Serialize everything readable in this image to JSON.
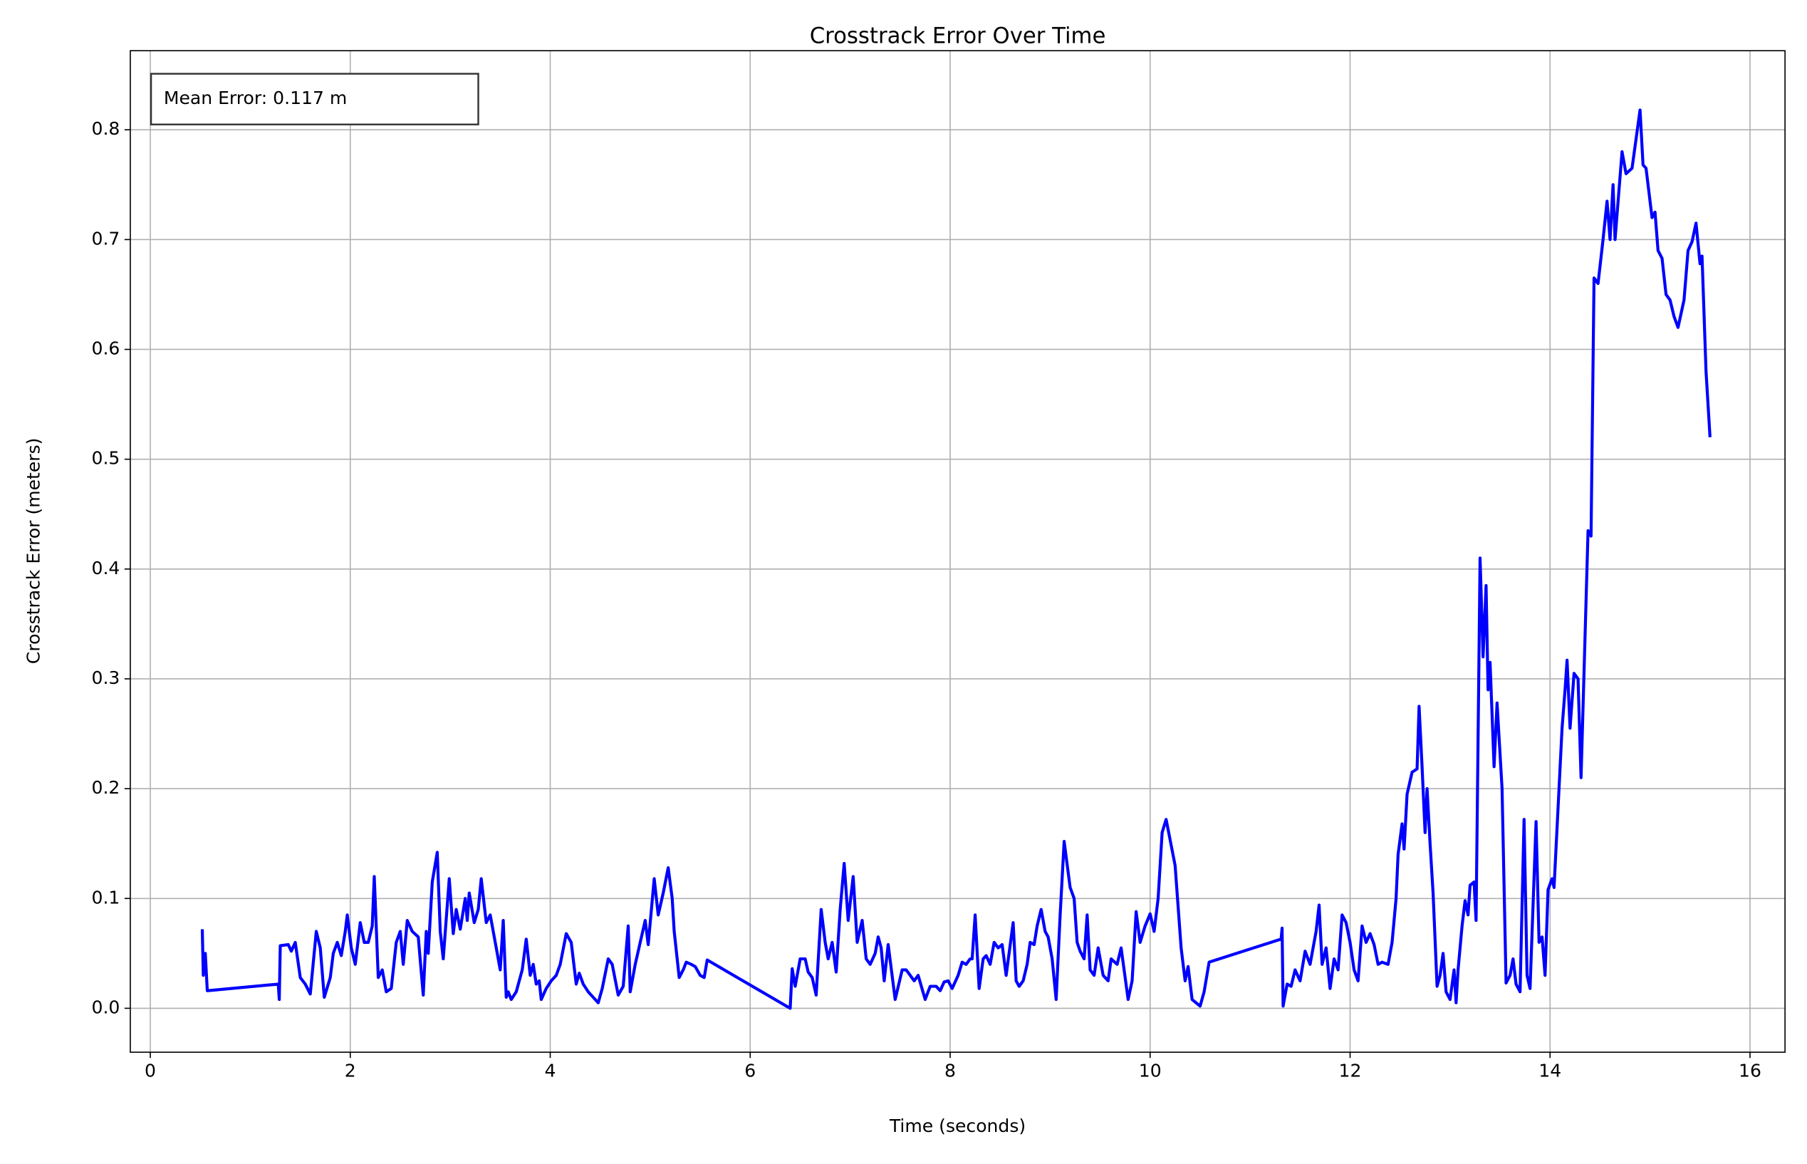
{
  "chart_data": {
    "type": "line",
    "title": "Crosstrack Error Over Time",
    "xlabel": "Time (seconds)",
    "ylabel": "Crosstrack Error (meters)",
    "annotation": "Mean Error: 0.117 m",
    "grid": true,
    "xlim": [
      -0.2,
      16.35
    ],
    "ylim": [
      -0.04,
      0.872
    ],
    "xticks": [
      0,
      2,
      4,
      6,
      8,
      10,
      12,
      14,
      16
    ],
    "yticks": [
      {
        "value": 0,
        "label": "0.0"
      },
      0.1,
      0.2,
      0.3,
      0.4,
      0.5,
      0.6,
      0.7,
      0.8
    ],
    "x": [
      0.52,
      0.53,
      0.55,
      0.57,
      1.28,
      1.29,
      1.3,
      1.38,
      1.41,
      1.45,
      1.5,
      1.55,
      1.6,
      1.66,
      1.7,
      1.74,
      1.8,
      1.83,
      1.87,
      1.91,
      1.95,
      1.97,
      2.01,
      2.05,
      2.1,
      2.14,
      2.18,
      2.22,
      2.24,
      2.28,
      2.32,
      2.36,
      2.41,
      2.46,
      2.5,
      2.53,
      2.57,
      2.62,
      2.68,
      2.73,
      2.76,
      2.78,
      2.82,
      2.87,
      2.9,
      2.93,
      2.99,
      3.03,
      3.06,
      3.1,
      3.15,
      3.17,
      3.19,
      3.24,
      3.28,
      3.31,
      3.36,
      3.4,
      3.45,
      3.5,
      3.53,
      3.56,
      3.58,
      3.61,
      3.66,
      3.72,
      3.76,
      3.8,
      3.83,
      3.86,
      3.89,
      3.91,
      3.96,
      4.01,
      4.06,
      4.1,
      4.16,
      4.21,
      4.26,
      4.29,
      4.33,
      4.38,
      4.43,
      4.48,
      4.52,
      4.58,
      4.62,
      4.68,
      4.73,
      4.78,
      4.8,
      4.85,
      4.9,
      4.95,
      4.98,
      5.04,
      5.08,
      5.13,
      5.18,
      5.22,
      5.24,
      5.29,
      5.33,
      5.36,
      5.41,
      5.45,
      5.5,
      5.54,
      5.57,
      6.4,
      6.42,
      6.45,
      6.5,
      6.55,
      6.58,
      6.62,
      6.66,
      6.71,
      6.75,
      6.78,
      6.82,
      6.86,
      6.9,
      6.94,
      6.98,
      7.03,
      7.07,
      7.12,
      7.16,
      7.2,
      7.25,
      7.28,
      7.31,
      7.34,
      7.38,
      7.45,
      7.52,
      7.56,
      7.6,
      7.64,
      7.68,
      7.75,
      7.8,
      7.86,
      7.9,
      7.94,
      7.98,
      8.02,
      8.08,
      8.12,
      8.16,
      8.2,
      8.22,
      8.25,
      8.29,
      8.33,
      8.36,
      8.4,
      8.44,
      8.48,
      8.52,
      8.56,
      8.63,
      8.66,
      8.69,
      8.73,
      8.77,
      8.8,
      8.84,
      8.87,
      8.91,
      8.95,
      8.98,
      9.02,
      9.06,
      9.1,
      9.14,
      9.2,
      9.24,
      9.27,
      9.3,
      9.34,
      9.37,
      9.4,
      9.44,
      9.48,
      9.53,
      9.58,
      9.61,
      9.67,
      9.71,
      9.78,
      9.82,
      9.86,
      9.9,
      9.95,
      10.0,
      10.04,
      10.08,
      10.12,
      10.16,
      10.25,
      10.31,
      10.35,
      10.38,
      10.42,
      10.5,
      10.54,
      10.59,
      11.31,
      11.32,
      11.33,
      11.37,
      11.41,
      11.45,
      11.5,
      11.55,
      11.6,
      11.66,
      11.69,
      11.72,
      11.76,
      11.8,
      11.84,
      11.88,
      11.92,
      11.96,
      12.0,
      12.04,
      12.08,
      12.12,
      12.16,
      12.2,
      12.24,
      12.28,
      12.32,
      12.38,
      12.42,
      12.46,
      12.48,
      12.52,
      12.54,
      12.57,
      12.62,
      12.67,
      12.69,
      12.72,
      12.75,
      12.77,
      12.8,
      12.83,
      12.87,
      12.9,
      12.93,
      12.96,
      13.0,
      13.04,
      13.06,
      13.08,
      13.12,
      13.15,
      13.18,
      13.2,
      13.24,
      13.26,
      13.3,
      13.33,
      13.36,
      13.38,
      13.4,
      13.44,
      13.47,
      13.52,
      13.56,
      13.6,
      13.63,
      13.66,
      13.7,
      13.74,
      13.77,
      13.8,
      13.86,
      13.89,
      13.92,
      13.95,
      13.98,
      14.02,
      14.04,
      14.12,
      14.15,
      14.17,
      14.2,
      14.24,
      14.28,
      14.31,
      14.38,
      14.41,
      14.44,
      14.48,
      14.53,
      14.57,
      14.6,
      14.63,
      14.65,
      14.72,
      14.76,
      14.82,
      14.9,
      14.93,
      14.96,
      15.02,
      15.05,
      15.08,
      15.12,
      15.16,
      15.2,
      15.24,
      15.28,
      15.34,
      15.38,
      15.42,
      15.46,
      15.5,
      15.52,
      15.56,
      15.6
    ],
    "series": [
      {
        "color": "#0000ff",
        "values": [
          0.072,
          0.03,
          0.05,
          0.016,
          0.022,
          0.008,
          0.057,
          0.058,
          0.052,
          0.06,
          0.028,
          0.022,
          0.013,
          0.07,
          0.055,
          0.01,
          0.028,
          0.05,
          0.06,
          0.048,
          0.07,
          0.085,
          0.055,
          0.04,
          0.078,
          0.06,
          0.06,
          0.075,
          0.12,
          0.028,
          0.035,
          0.015,
          0.018,
          0.06,
          0.07,
          0.04,
          0.08,
          0.07,
          0.065,
          0.012,
          0.07,
          0.05,
          0.115,
          0.142,
          0.07,
          0.045,
          0.118,
          0.068,
          0.09,
          0.072,
          0.1,
          0.08,
          0.105,
          0.078,
          0.09,
          0.118,
          0.078,
          0.085,
          0.06,
          0.035,
          0.08,
          0.01,
          0.015,
          0.008,
          0.015,
          0.035,
          0.063,
          0.03,
          0.04,
          0.022,
          0.025,
          0.008,
          0.018,
          0.025,
          0.03,
          0.04,
          0.068,
          0.06,
          0.022,
          0.032,
          0.022,
          0.015,
          0.01,
          0.005,
          0.018,
          0.045,
          0.04,
          0.012,
          0.02,
          0.075,
          0.015,
          0.04,
          0.06,
          0.08,
          0.058,
          0.118,
          0.085,
          0.105,
          0.128,
          0.1,
          0.07,
          0.028,
          0.035,
          0.042,
          0.04,
          0.038,
          0.03,
          0.028,
          0.044,
          0,
          0.036,
          0.02,
          0.045,
          0.045,
          0.033,
          0.028,
          0.012,
          0.09,
          0.06,
          0.045,
          0.06,
          0.033,
          0.09,
          0.132,
          0.08,
          0.12,
          0.06,
          0.08,
          0.045,
          0.04,
          0.05,
          0.065,
          0.055,
          0.025,
          0.058,
          0.008,
          0.035,
          0.035,
          0.03,
          0.025,
          0.03,
          0.008,
          0.02,
          0.02,
          0.016,
          0.024,
          0.025,
          0.018,
          0.03,
          0.042,
          0.04,
          0.045,
          0.045,
          0.085,
          0.018,
          0.045,
          0.048,
          0.04,
          0.06,
          0.055,
          0.058,
          0.03,
          0.078,
          0.025,
          0.02,
          0.025,
          0.04,
          0.06,
          0.058,
          0.075,
          0.09,
          0.07,
          0.065,
          0.045,
          0.008,
          0.085,
          0.152,
          0.11,
          0.1,
          0.06,
          0.052,
          0.045,
          0.085,
          0.035,
          0.03,
          0.055,
          0.03,
          0.025,
          0.045,
          0.04,
          0.055,
          0.008,
          0.025,
          0.088,
          0.06,
          0.075,
          0.086,
          0.07,
          0.1,
          0.16,
          0.172,
          0.13,
          0.055,
          0.025,
          0.038,
          0.008,
          0.002,
          0.015,
          0.042,
          0.063,
          0.073,
          0.002,
          0.022,
          0.02,
          0.035,
          0.025,
          0.052,
          0.04,
          0.07,
          0.094,
          0.04,
          0.055,
          0.018,
          0.045,
          0.035,
          0.085,
          0.078,
          0.06,
          0.035,
          0.025,
          0.075,
          0.06,
          0.068,
          0.058,
          0.04,
          0.042,
          0.04,
          0.06,
          0.1,
          0.14,
          0.168,
          0.145,
          0.195,
          0.215,
          0.218,
          0.275,
          0.22,
          0.16,
          0.2,
          0.15,
          0.105,
          0.02,
          0.03,
          0.05,
          0.015,
          0.008,
          0.035,
          0.005,
          0.035,
          0.075,
          0.098,
          0.085,
          0.112,
          0.115,
          0.08,
          0.41,
          0.32,
          0.385,
          0.29,
          0.315,
          0.22,
          0.278,
          0.2,
          0.023,
          0.03,
          0.045,
          0.022,
          0.015,
          0.172,
          0.03,
          0.018,
          0.17,
          0.06,
          0.065,
          0.03,
          0.108,
          0.118,
          0.11,
          0.255,
          0.29,
          0.317,
          0.255,
          0.305,
          0.3,
          0.21,
          0.435,
          0.43,
          0.665,
          0.66,
          0.7,
          0.735,
          0.7,
          0.75,
          0.7,
          0.78,
          0.76,
          0.765,
          0.818,
          0.768,
          0.765,
          0.72,
          0.725,
          0.69,
          0.683,
          0.65,
          0.645,
          0.63,
          0.62,
          0.645,
          0.69,
          0.698,
          0.715,
          0.678,
          0.685,
          0.58,
          0.52
        ]
      }
    ]
  }
}
